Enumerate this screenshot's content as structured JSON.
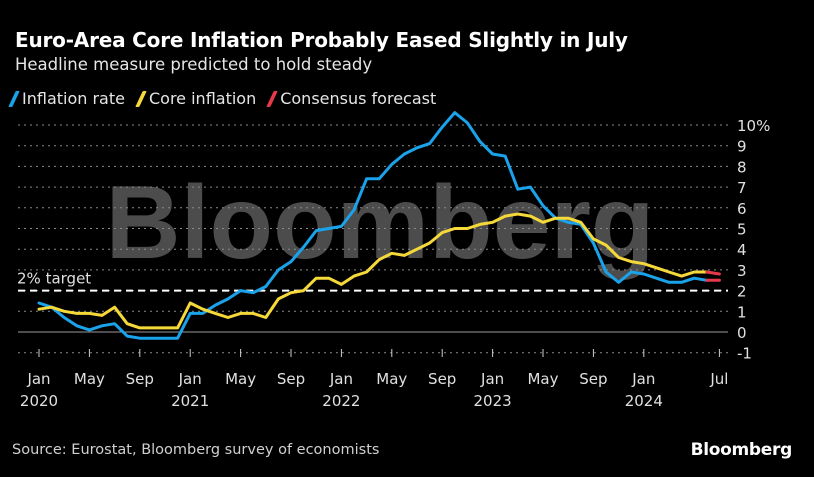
{
  "header": {
    "title": "Euro-Area Core Inflation Probably Eased Slightly in July",
    "subtitle": "Headline measure predicted to hold steady"
  },
  "legend": [
    {
      "label": "Inflation rate",
      "color": "#1aa3ea"
    },
    {
      "label": "Core inflation",
      "color": "#f5d93a"
    },
    {
      "label": "Consensus forecast",
      "color": "#e8394a"
    }
  ],
  "footer": {
    "source": "Source: Eurostat, Bloomberg survey of economists",
    "brand": "Bloomberg",
    "watermark": "Bloomberg"
  },
  "chart_data": {
    "type": "line",
    "title": "Euro-Area Core Inflation Probably Eased Slightly in July",
    "subtitle": "Headline measure predicted to hold steady",
    "xlabel": "",
    "ylabel": "",
    "ylim": [
      -1,
      10
    ],
    "yticks": [
      "10%",
      "9",
      "8",
      "7",
      "6",
      "5",
      "4",
      "3",
      "2",
      "1",
      "0",
      "-1"
    ],
    "ytick_values": [
      10,
      9,
      8,
      7,
      6,
      5,
      4,
      3,
      2,
      1,
      0,
      -1
    ],
    "grid": true,
    "legend_position": "top-left",
    "x_start": "2020-01",
    "x_end": "2024-07",
    "xticks": [
      {
        "month_index": 0,
        "label": "Jan",
        "year": "2020"
      },
      {
        "month_index": 4,
        "label": "May",
        "year": ""
      },
      {
        "month_index": 8,
        "label": "Sep",
        "year": ""
      },
      {
        "month_index": 12,
        "label": "Jan",
        "year": "2021"
      },
      {
        "month_index": 16,
        "label": "May",
        "year": ""
      },
      {
        "month_index": 20,
        "label": "Sep",
        "year": ""
      },
      {
        "month_index": 24,
        "label": "Jan",
        "year": "2022"
      },
      {
        "month_index": 28,
        "label": "May",
        "year": ""
      },
      {
        "month_index": 32,
        "label": "Sep",
        "year": ""
      },
      {
        "month_index": 36,
        "label": "Jan",
        "year": "2023"
      },
      {
        "month_index": 40,
        "label": "May",
        "year": ""
      },
      {
        "month_index": 44,
        "label": "Sep",
        "year": ""
      },
      {
        "month_index": 48,
        "label": "Jan",
        "year": "2024"
      },
      {
        "month_index": 54,
        "label": "Jul",
        "year": ""
      }
    ],
    "reference_line": {
      "value": 2,
      "label": "2% target"
    },
    "series": [
      {
        "name": "Inflation rate",
        "color": "#1aa3ea",
        "start_index": 0,
        "values": [
          1.4,
          1.2,
          0.7,
          0.3,
          0.1,
          0.3,
          0.4,
          -0.2,
          -0.3,
          -0.3,
          -0.3,
          -0.3,
          0.9,
          0.9,
          1.3,
          1.6,
          2.0,
          1.9,
          2.2,
          3.0,
          3.4,
          4.1,
          4.9,
          5.0,
          5.1,
          5.9,
          7.4,
          7.4,
          8.1,
          8.6,
          8.9,
          9.1,
          9.9,
          10.6,
          10.1,
          9.2,
          8.6,
          8.5,
          6.9,
          7.0,
          6.1,
          5.5,
          5.3,
          5.2,
          4.3,
          2.9,
          2.4,
          2.9,
          2.8,
          2.6,
          2.4,
          2.4,
          2.6,
          2.5
        ]
      },
      {
        "name": "Core inflation",
        "color": "#f5d93a",
        "start_index": 0,
        "values": [
          1.1,
          1.2,
          1.0,
          0.9,
          0.9,
          0.8,
          1.2,
          0.4,
          0.2,
          0.2,
          0.2,
          0.2,
          1.4,
          1.1,
          0.9,
          0.7,
          0.9,
          0.9,
          0.7,
          1.6,
          1.9,
          2.0,
          2.6,
          2.6,
          2.3,
          2.7,
          2.9,
          3.5,
          3.8,
          3.7,
          4.0,
          4.3,
          4.8,
          5.0,
          5.0,
          5.2,
          5.3,
          5.6,
          5.7,
          5.6,
          5.3,
          5.5,
          5.5,
          5.3,
          4.5,
          4.2,
          3.6,
          3.4,
          3.3,
          3.1,
          2.9,
          2.7,
          2.9,
          2.9
        ]
      },
      {
        "name": "Consensus forecast (headline)",
        "color": "#e8394a",
        "start_index": 53,
        "values": [
          2.5,
          2.5
        ]
      },
      {
        "name": "Consensus forecast (core)",
        "color": "#e8394a",
        "start_index": 53,
        "values": [
          2.9,
          2.8
        ]
      }
    ]
  }
}
